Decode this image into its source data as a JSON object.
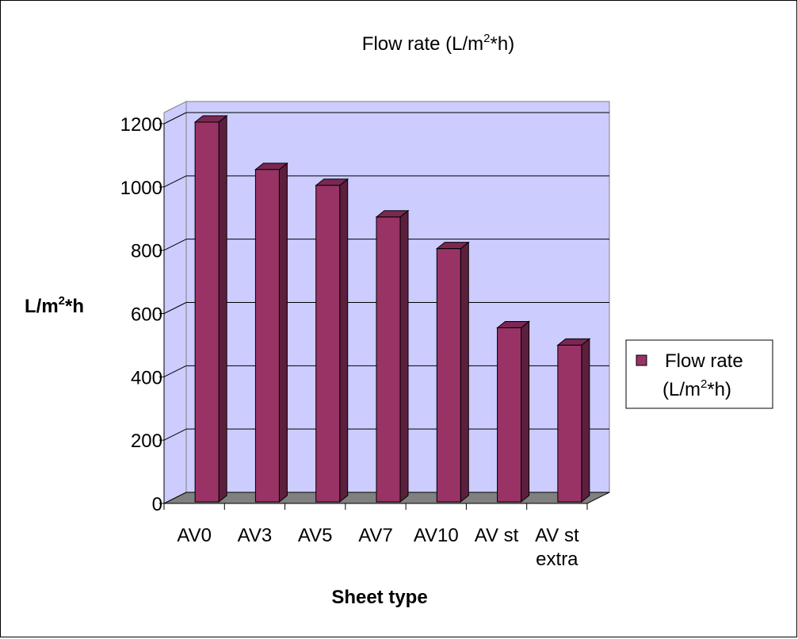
{
  "chart_data": {
    "type": "bar",
    "title": "Flow rate (L/m²*h)",
    "title_parts": {
      "pre": "Flow rate (L/m",
      "sup": "2",
      "post": "*h)"
    },
    "xlabel": "Sheet type",
    "ylabel": "L/m²*h",
    "ylabel_parts": {
      "pre": "L/m",
      "sup": "2",
      "post": "*h"
    },
    "categories": [
      "AV0",
      "AV3",
      "AV5",
      "AV7",
      "AV10",
      "AV st",
      "AV st extra"
    ],
    "category_lines": [
      [
        "AV0"
      ],
      [
        "AV3"
      ],
      [
        "AV5"
      ],
      [
        "AV7"
      ],
      [
        "AV10"
      ],
      [
        "AV st"
      ],
      [
        "AV st",
        "extra"
      ]
    ],
    "series": [
      {
        "name": "Flow rate (L/m²*h)",
        "values": [
          1200,
          1050,
          1000,
          900,
          800,
          550,
          495
        ]
      }
    ],
    "y_ticks": [
      "0",
      "200",
      "400",
      "600",
      "800",
      "1000",
      "1200"
    ],
    "ylim": [
      0,
      1200
    ],
    "grid": true,
    "legend": {
      "position": "right",
      "lines": [
        {
          "pre": "Flow rate",
          "sup": "",
          "post": ""
        },
        {
          "pre": "(L/m",
          "sup": "2",
          "post": "*h)"
        }
      ]
    },
    "colors": {
      "bar_front": "#993366",
      "bar_side": "#5c1f3d",
      "bar_top": "#7a2852",
      "wall": "#ccccff",
      "floor": "#808080",
      "grid": "#000000"
    }
  }
}
